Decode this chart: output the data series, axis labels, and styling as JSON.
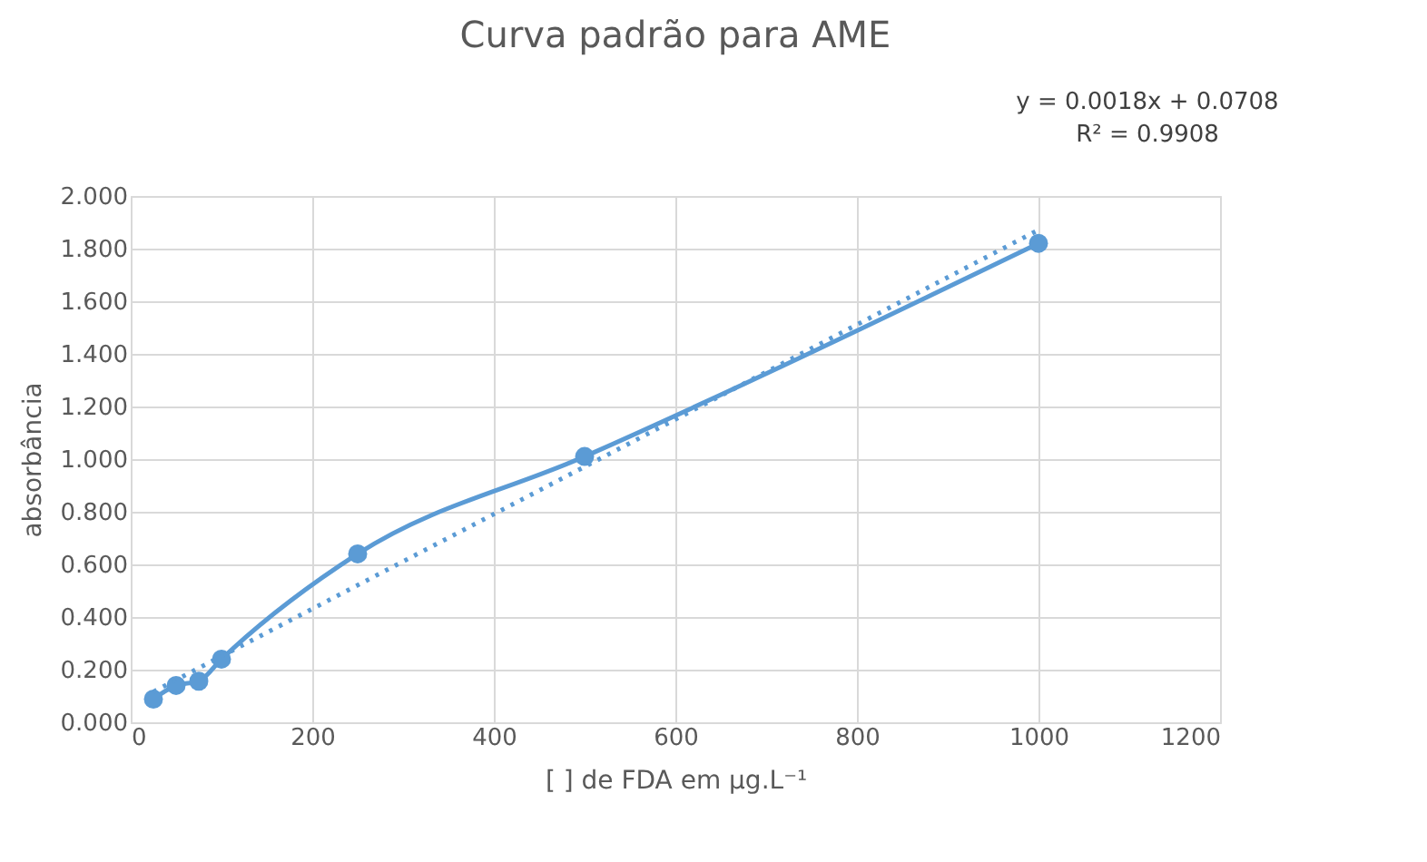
{
  "chart_data": {
    "type": "line",
    "title": "Curva padrão para AME",
    "xlabel": "[  ] de FDA em µg.L⁻¹",
    "ylabel": "absorbância",
    "x": [
      25,
      50,
      75,
      100,
      250,
      500,
      1000
    ],
    "series": [
      {
        "color": "#5b9bd5",
        "values": [
          0.088,
          0.14,
          0.156,
          0.24,
          0.64,
          1.01,
          1.82
        ],
        "marker": "circle",
        "line_style": "solid"
      },
      {
        "type": "line",
        "color": "#5b9bd5",
        "x": [
          25,
          1000
        ],
        "values": [
          0.116,
          1.871
        ],
        "marker": "none",
        "line_style": "dotted"
      }
    ],
    "xlim": [
      0,
      1200
    ],
    "xticks": [
      0,
      200,
      400,
      600,
      800,
      1000,
      1200
    ],
    "ylim": [
      0,
      2
    ],
    "yticks": [
      {
        "value": 0,
        "label": "0.000"
      },
      {
        "value": 0.2,
        "label": "0.200"
      },
      {
        "value": 0.4,
        "label": "0.400"
      },
      {
        "value": 0.6,
        "label": "0.600"
      },
      {
        "value": 0.8,
        "label": "0.800"
      },
      {
        "value": 1,
        "label": "1.000"
      },
      {
        "value": 1.2,
        "label": "1.200"
      },
      {
        "value": 1.4,
        "label": "1.400"
      },
      {
        "value": 1.6,
        "label": "1.600"
      },
      {
        "value": 1.8,
        "label": "1.800"
      },
      {
        "value": 2,
        "label": "2.000"
      }
    ],
    "annotations": [
      "y = 0.0018x + 0.0708",
      "R² = 0.9908"
    ],
    "grid": true
  }
}
